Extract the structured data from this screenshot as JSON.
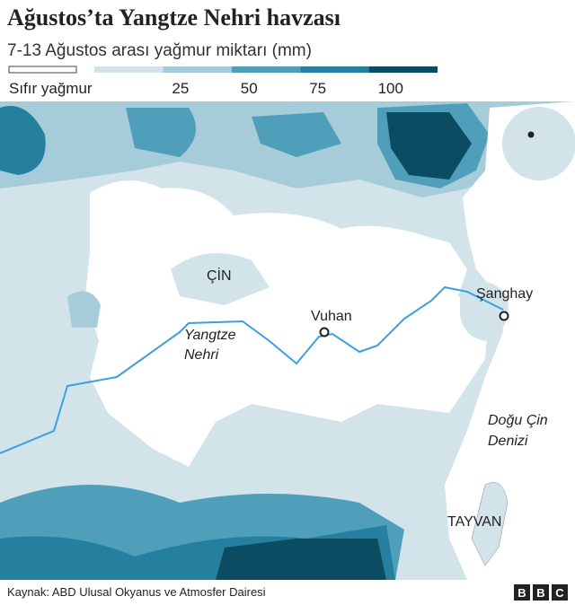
{
  "header": {
    "title": "Ağustos’ta Yangtze Nehri havzası",
    "subtitle": "7-13 Ağustos arası yağmur miktarı (mm)"
  },
  "legend": {
    "zero_label": "Sıfır yağmur",
    "bins": [
      {
        "label": null,
        "color": "#d3e3ea"
      },
      {
        "label": 25,
        "color": "#a6ccda"
      },
      {
        "label": 50,
        "color": "#4f9fbb"
      },
      {
        "label": 75,
        "color": "#257f9e"
      },
      {
        "label": 100,
        "color": "#0b4c62"
      }
    ]
  },
  "map": {
    "labels": {
      "country": "ÇİN",
      "river_line1": "Yangtze",
      "river_line2": "Nehri",
      "sea_line1": "Doğu Çin",
      "sea_line2": "Denizi",
      "taiwan": "TAYVAN"
    },
    "cities": [
      {
        "name": "Vuhan"
      },
      {
        "name": "Şanghay"
      }
    ]
  },
  "footer": {
    "source": "Kaynak: ABD Ulusal Okyanus ve Atmosfer Dairesi",
    "logo": [
      "B",
      "B",
      "C"
    ]
  }
}
